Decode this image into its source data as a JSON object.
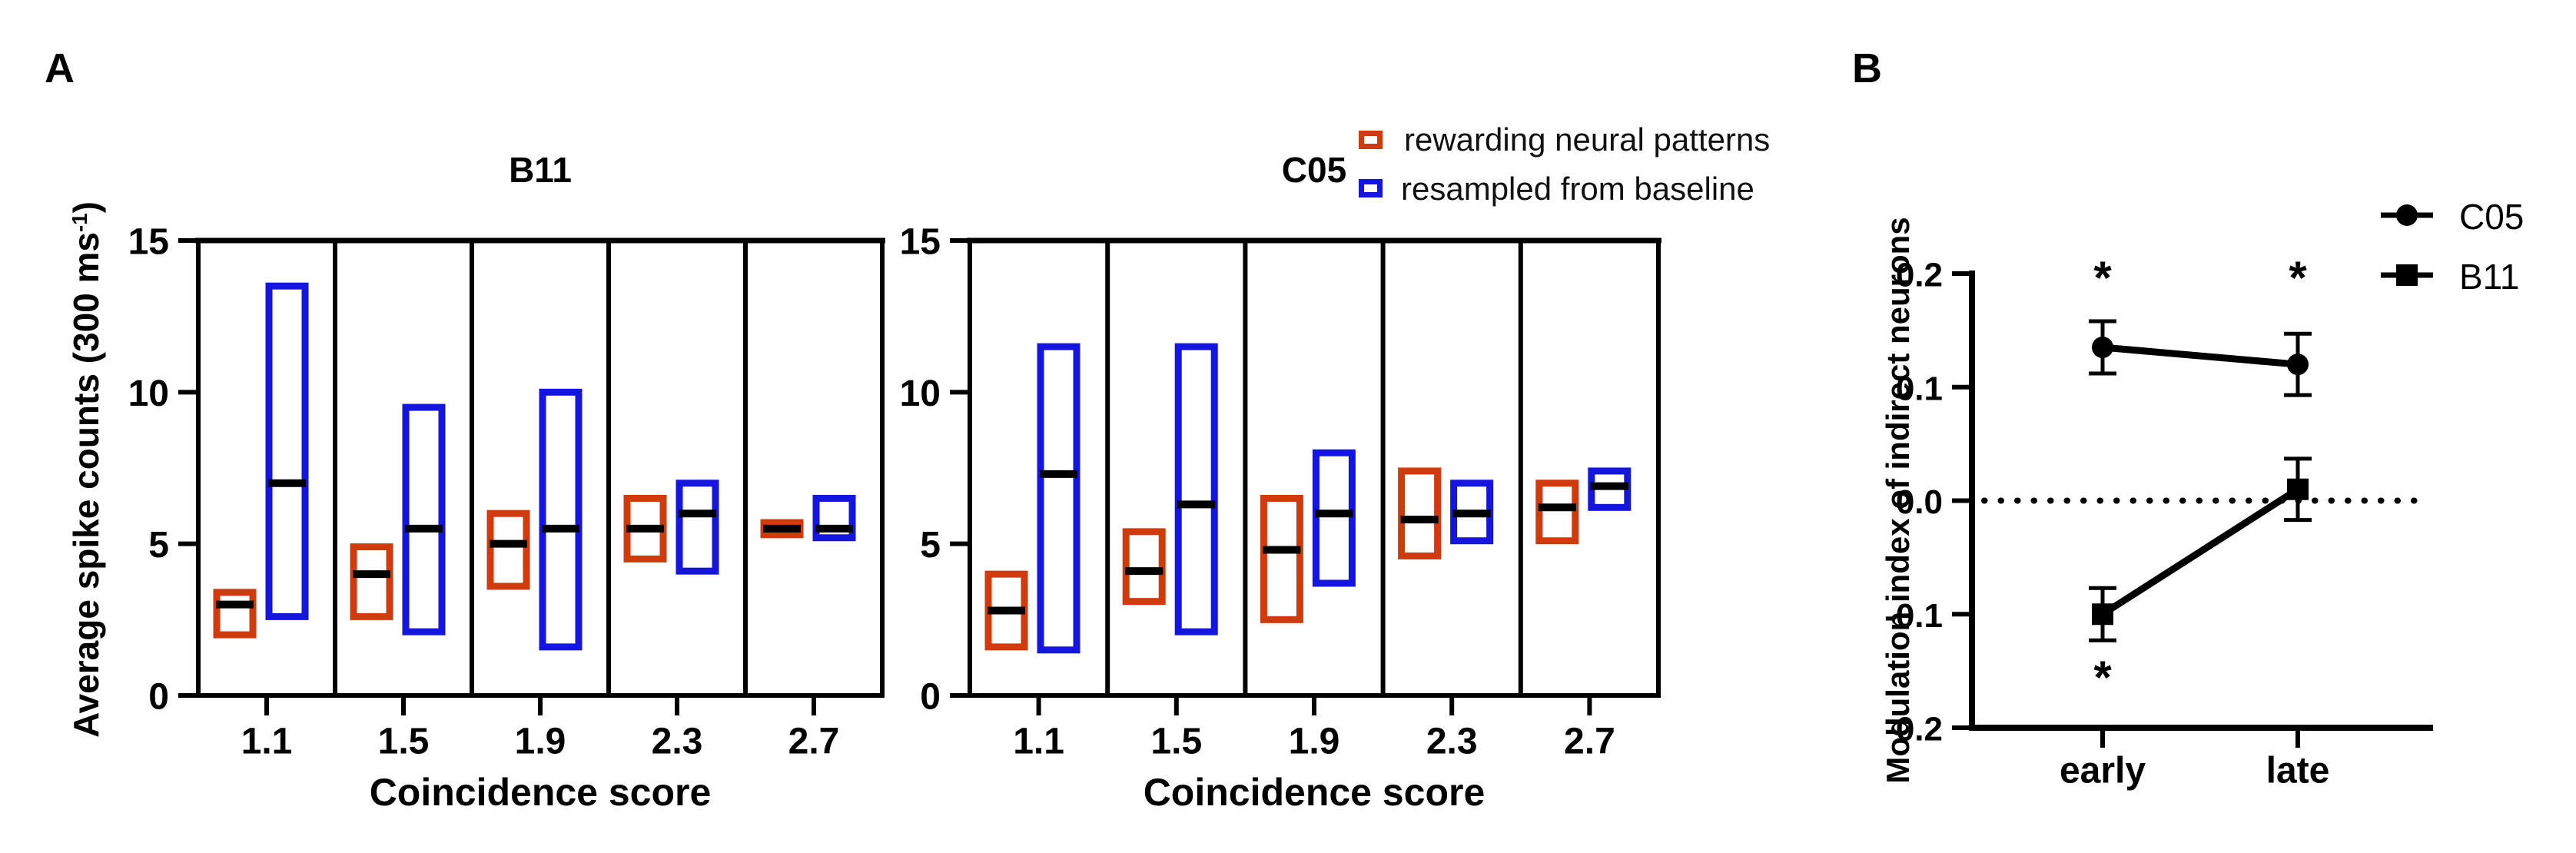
{
  "panels": {
    "a": {
      "label": "A",
      "ylabel_parts": {
        "pre": "Average spike counts (300 ms",
        "sup": "-1",
        "post": ")"
      }
    },
    "b": {
      "label": "B"
    }
  },
  "colors": {
    "rewarding": "#d03b0e",
    "baseline": "#1515e0",
    "series_black": "#000000",
    "background": "#ffffff"
  },
  "chart_data": [
    {
      "type": "box-range",
      "panel": "A",
      "title": "B11",
      "xlabel": "Coincidence score",
      "ylabel": "Average spike counts (300 ms^-1)",
      "ylim": [
        0,
        15
      ],
      "yticks": [
        15,
        10,
        5,
        0
      ],
      "categories": [
        "1.1",
        "1.5",
        "1.9",
        "2.3",
        "2.7"
      ],
      "grid": "cell-dividers",
      "series": [
        {
          "name": "rewarding neural patterns",
          "color": "#d03b0e",
          "boxes": [
            {
              "lo": 2.0,
              "hi": 3.4,
              "median": 3.0
            },
            {
              "lo": 2.6,
              "hi": 4.9,
              "median": 4.0
            },
            {
              "lo": 3.6,
              "hi": 6.0,
              "median": 5.0
            },
            {
              "lo": 4.5,
              "hi": 6.5,
              "median": 5.5
            },
            {
              "lo": 5.3,
              "hi": 5.7,
              "median": 5.5
            }
          ]
        },
        {
          "name": "resampled from baseline",
          "color": "#1515e0",
          "boxes": [
            {
              "lo": 2.6,
              "hi": 13.5,
              "median": 7.0
            },
            {
              "lo": 2.1,
              "hi": 9.5,
              "median": 5.5
            },
            {
              "lo": 1.6,
              "hi": 10.0,
              "median": 5.5
            },
            {
              "lo": 4.1,
              "hi": 7.0,
              "median": 6.0
            },
            {
              "lo": 5.2,
              "hi": 6.5,
              "median": 5.5
            }
          ]
        }
      ]
    },
    {
      "type": "box-range",
      "panel": "A",
      "title": "C05",
      "xlabel": "Coincidence score",
      "ylabel": "Average spike counts (300 ms^-1)",
      "ylim": [
        0,
        15
      ],
      "yticks": [
        15,
        10,
        5,
        0
      ],
      "categories": [
        "1.1",
        "1.5",
        "1.9",
        "2.3",
        "2.7"
      ],
      "grid": "cell-dividers",
      "series": [
        {
          "name": "rewarding neural patterns",
          "color": "#d03b0e",
          "boxes": [
            {
              "lo": 1.6,
              "hi": 4.0,
              "median": 2.8
            },
            {
              "lo": 3.1,
              "hi": 5.4,
              "median": 4.1
            },
            {
              "lo": 2.5,
              "hi": 6.5,
              "median": 4.8
            },
            {
              "lo": 4.6,
              "hi": 7.4,
              "median": 5.8
            },
            {
              "lo": 5.1,
              "hi": 7.0,
              "median": 6.2
            }
          ]
        },
        {
          "name": "resampled from baseline",
          "color": "#1515e0",
          "boxes": [
            {
              "lo": 1.5,
              "hi": 11.5,
              "median": 7.3
            },
            {
              "lo": 2.1,
              "hi": 11.5,
              "median": 6.3
            },
            {
              "lo": 3.7,
              "hi": 8.0,
              "median": 6.0
            },
            {
              "lo": 5.1,
              "hi": 7.0,
              "median": 6.0
            },
            {
              "lo": 6.2,
              "hi": 7.4,
              "median": 6.9
            }
          ]
        }
      ]
    },
    {
      "type": "line",
      "panel": "B",
      "title": "",
      "xlabel": "",
      "ylabel": "Modulation index of indirect neurons",
      "ylim": [
        -0.2,
        0.2
      ],
      "yticks": [
        0.2,
        0.1,
        0.0,
        -0.1,
        -0.2
      ],
      "categories": [
        "early",
        "late"
      ],
      "zero_line": "dotted",
      "legend_position": "top-right",
      "series": [
        {
          "name": "C05",
          "marker": "circle",
          "color": "#000000",
          "values": [
            0.135,
            0.12
          ],
          "errors": [
            0.023,
            0.027
          ]
        },
        {
          "name": "B11",
          "marker": "square",
          "color": "#000000",
          "values": [
            -0.1,
            0.01
          ],
          "errors": [
            0.023,
            0.027
          ]
        }
      ],
      "annotations": [
        {
          "text": "*",
          "category": "early",
          "y": 0.2
        },
        {
          "text": "*",
          "category": "late",
          "y": 0.2
        },
        {
          "text": "*",
          "category": "early",
          "y": -0.152
        }
      ]
    }
  ]
}
